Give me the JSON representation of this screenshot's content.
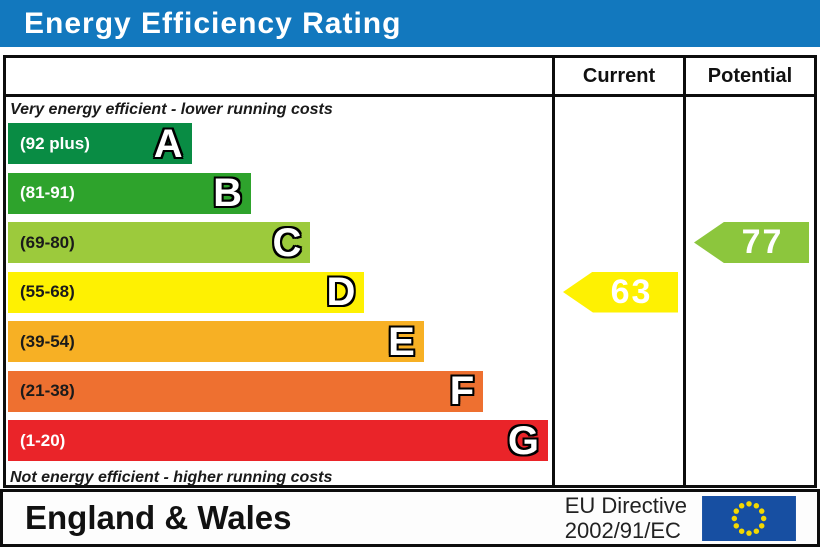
{
  "title": {
    "text": "Energy Efficiency Rating",
    "bg": "#1278be",
    "fg": "#ffffff"
  },
  "columns": {
    "current": "Current",
    "potential": "Potential"
  },
  "captions": {
    "top": "Very energy efficient - lower running costs",
    "bottom": "Not energy efficient - higher running costs"
  },
  "chart_data": {
    "type": "bar",
    "title": "Energy Efficiency Rating",
    "categories": [
      "A",
      "B",
      "C",
      "D",
      "E",
      "F",
      "G"
    ],
    "bands": [
      {
        "letter": "A",
        "range": "(92 plus)",
        "min": 92,
        "max": 100,
        "color": "#098c44",
        "label_color": "#ffffff",
        "width_pct": 34
      },
      {
        "letter": "B",
        "range": "(81-91)",
        "min": 81,
        "max": 91,
        "color": "#2ea32c",
        "label_color": "#ffffff",
        "width_pct": 45
      },
      {
        "letter": "C",
        "range": "(69-80)",
        "min": 69,
        "max": 80,
        "color": "#9cca3c",
        "label_color": "#1a1a1a",
        "width_pct": 56
      },
      {
        "letter": "D",
        "range": "(55-68)",
        "min": 55,
        "max": 68,
        "color": "#fef102",
        "label_color": "#1a1a1a",
        "width_pct": 66
      },
      {
        "letter": "E",
        "range": "(39-54)",
        "min": 39,
        "max": 54,
        "color": "#f7b024",
        "label_color": "#1a1a1a",
        "width_pct": 77
      },
      {
        "letter": "F",
        "range": "(21-38)",
        "min": 21,
        "max": 38,
        "color": "#ee7030",
        "label_color": "#1a1a1a",
        "width_pct": 88
      },
      {
        "letter": "G",
        "range": "(1-20)",
        "min": 1,
        "max": 20,
        "color": "#ea2429",
        "label_color": "#ffffff",
        "width_pct": 100
      }
    ],
    "current": {
      "value": 63,
      "band": "D",
      "color": "#fef102"
    },
    "potential": {
      "value": 77,
      "band": "C",
      "color": "#8cc63d"
    }
  },
  "footer": {
    "region": "England & Wales",
    "directive_line1": "EU Directive",
    "directive_line2": "2002/91/EC",
    "eu_flag": {
      "bg": "#174fa2",
      "star": "#f3d800"
    }
  }
}
